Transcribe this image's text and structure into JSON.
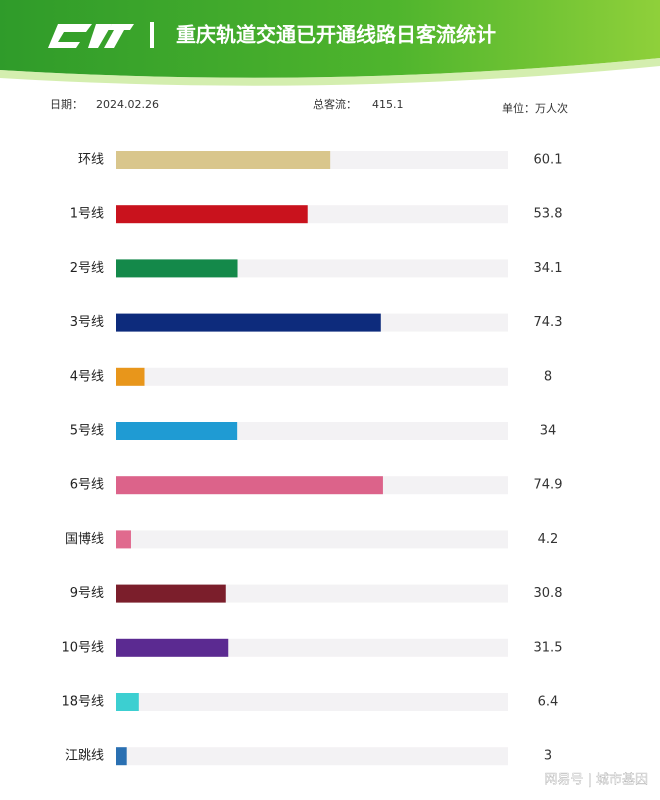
{
  "chart_data": {
    "type": "barh",
    "title": "重庆轨道交通已开通线路日客流统计",
    "date_label": "日期：",
    "date": "2024.02.26",
    "total_label": "总客流：",
    "total": 415.1,
    "unit": "单位：万人次",
    "watermark": "网易号 | 城市基因",
    "categories": [
      "环线",
      "1号线",
      "2号线",
      "3号线",
      "4号线",
      "5号线",
      "6号线",
      "国博线",
      "9号线",
      "10号线",
      "18号线",
      "江跳线"
    ],
    "values": [
      60.1,
      53.8,
      34.1,
      74.3,
      8,
      34,
      74.9,
      4.2,
      30.8,
      31.5,
      6.4,
      3
    ],
    "colors": [
      "#d9c68c",
      "#c9121d",
      "#14894a",
      "#0d2b7c",
      "#e8961b",
      "#1f9bd3",
      "#dc638a",
      "#e06a8e",
      "#7b1e2b",
      "#5b2a91",
      "#3ccfd1",
      "#2a70b2"
    ],
    "xlim": [
      0,
      110
    ]
  }
}
